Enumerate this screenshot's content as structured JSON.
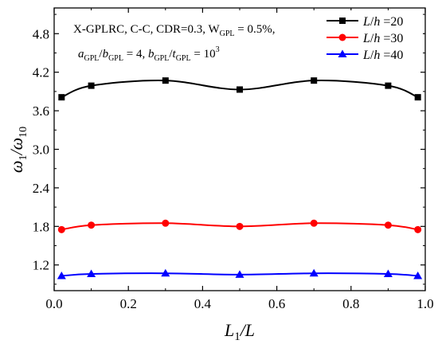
{
  "chart_data": {
    "type": "line",
    "annotation": {
      "line1": "X-GPLRC, C-C, CDR=0.3, W",
      "line1_sub": "GPL",
      "line1_tail": " = 0.5%,",
      "line2_a": "a",
      "line2_a_sub": "GPL",
      "line2_slash1": "/",
      "line2_b": "b",
      "line2_b_sub": "GPL",
      "line2_eq1": " = 4,  ",
      "line2_c": "b",
      "line2_c_sub": "GPL",
      "line2_slash2": "/",
      "line2_t": "t",
      "line2_t_sub": "GPL",
      "line2_eq2": " = 10",
      "line2_exp": "3"
    },
    "xlabel": "L",
    "xlabel_sub": "1",
    "xlabel_tail": "/L",
    "ylabel": "ω",
    "ylabel_sub1": "1",
    "ylabel_mid": "/ω",
    "ylabel_sub2": "10",
    "xlim": [
      0.0,
      1.0
    ],
    "ylim": [
      0.8,
      5.2
    ],
    "xticks": [
      0.0,
      0.2,
      0.4,
      0.6,
      0.8,
      1.0
    ],
    "yticks": [
      1.2,
      1.8,
      2.4,
      3.0,
      3.6,
      4.2,
      4.8
    ],
    "xtick_labels": [
      "0.0",
      "0.2",
      "0.4",
      "0.6",
      "0.8",
      "1.0"
    ],
    "ytick_labels": [
      "1.2",
      "1.8",
      "2.4",
      "3.0",
      "3.6",
      "4.2",
      "4.8"
    ],
    "grid": false,
    "legend_position": "top-right",
    "x": [
      0.02,
      0.1,
      0.3,
      0.5,
      0.7,
      0.9,
      0.98
    ],
    "series": [
      {
        "name": "L/h =20",
        "name_var1": "L",
        "name_var2": "h",
        "name_value": " =20",
        "color": "#000000",
        "marker": "square",
        "values": [
          3.81,
          3.99,
          4.07,
          3.93,
          4.07,
          3.99,
          3.81
        ]
      },
      {
        "name": "L/h =30",
        "name_var1": "L",
        "name_var2": "h",
        "name_value": " =30",
        "color": "#ff0000",
        "marker": "circle",
        "values": [
          1.75,
          1.82,
          1.85,
          1.8,
          1.85,
          1.82,
          1.75
        ]
      },
      {
        "name": "L/h =40",
        "name_var1": "L",
        "name_var2": "h",
        "name_value": " =40",
        "color": "#0000ff",
        "marker": "triangle",
        "values": [
          1.03,
          1.06,
          1.07,
          1.05,
          1.07,
          1.06,
          1.03
        ]
      }
    ]
  }
}
